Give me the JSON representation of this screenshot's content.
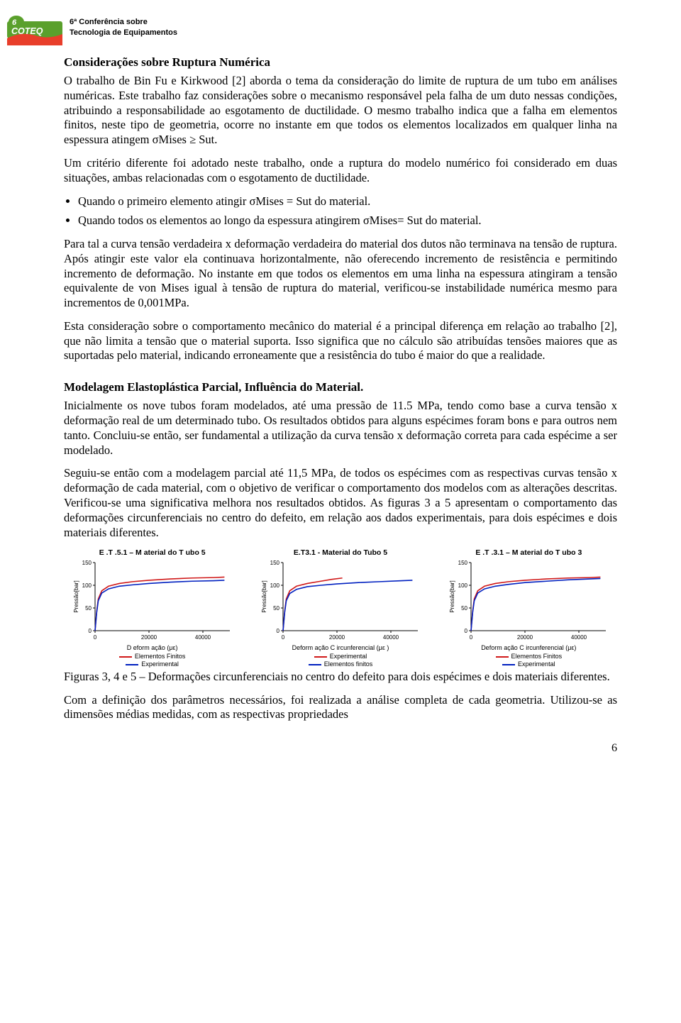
{
  "header": {
    "conf_line1": "6ª Conferência sobre",
    "conf_line2": "Tecnologia de Equipamentos",
    "logo_text": "COTEQ",
    "logo_bg": "#5aa02c",
    "logo_fg": "#ffffff",
    "logo_wave": "#e83e2a"
  },
  "section1_title": "Considerações sobre Ruptura Numérica",
  "p1": "O trabalho de Bin Fu e Kirkwood [2] aborda o tema da consideração do limite de ruptura de um tubo em análises numéricas. Este trabalho faz considerações sobre o mecanismo responsável pela falha de um duto nessas condições, atribuindo a responsabilidade ao esgotamento de ductilidade. O mesmo trabalho indica que a falha em elementos finitos, neste tipo de geometria, ocorre no instante em que todos os elementos localizados em qualquer linha na espessura atingem σMises ≥ Sut.",
  "p2": "Um critério diferente foi adotado neste trabalho, onde a ruptura do modelo numérico foi considerado em duas situações, ambas relacionadas com o esgotamento de ductilidade.",
  "bul1": "Quando o primeiro elemento atingir σMises = Sut do material.",
  "bul2": "Quando todos os elementos ao longo da espessura atingirem σMises= Sut do material.",
  "p3": "Para tal a curva tensão verdadeira x deformação verdadeira do material dos dutos não terminava na tensão de ruptura. Após atingir este valor ela continuava horizontalmente, não oferecendo incremento de resistência e permitindo incremento de deformação. No instante em que todos os elementos em uma linha na espessura atingiram a tensão equivalente de von Mises igual à tensão de ruptura do material, verificou-se instabilidade numérica mesmo para incrementos de 0,001MPa.",
  "p4": "Esta consideração sobre o comportamento mecânico do material é a principal diferença em relação ao trabalho [2], que não limita a tensão que o material suporta. Isso significa que no cálculo são atribuídas tensões maiores que as suportadas pelo material, indicando erroneamente que a resistência do tubo é maior do que a realidade.",
  "section2_title": "Modelagem Elastoplástica Parcial, Influência do Material.",
  "p5": "Inicialmente os nove tubos foram modelados, até uma pressão de 11.5 MPa,  tendo como base a curva tensão x deformação real de um determinado tubo. Os resultados obtidos para alguns espécimes foram bons e para outros nem tanto. Concluiu-se então, ser fundamental a utilização da curva tensão x deformação correta para cada espécime a ser modelado.",
  "p6": "Seguiu-se então com a modelagem parcial até 11,5 MPa, de todos os espécimes com as respectivas curvas tensão x deformação de cada material, com o objetivo de verificar o comportamento dos modelos com as alterações descritas. Verificou-se uma significativa melhora nos resultados obtidos. As figuras 3 a 5 apresentam o comportamento das deformações circunferenciais no centro do defeito, em relação aos dados experimentais, para dois espécimes e dois materiais diferentes.",
  "fig_caption": "Figuras 3, 4 e 5 – Deformações circunferenciais no centro do defeito para dois espécimes e dois materiais diferentes.",
  "p7": "Com a definição dos parâmetros necessários, foi realizada a análise completa de cada geometria. Utilizou-se as dimensões médias medidas, com as respectivas propriedades",
  "page_number": "6",
  "charts": {
    "common": {
      "ylabel": "Pressão[bar]",
      "ylim": [
        0,
        150
      ],
      "yticks": [
        0,
        50,
        100,
        150
      ],
      "xlim": [
        0,
        50000
      ],
      "xticks": [
        0,
        20000,
        40000
      ],
      "bg": "#ffffff",
      "axis_color": "#000000",
      "tick_fontsize": 8,
      "ylabel_fontsize": 8
    },
    "c1": {
      "title": "E .T .5.1 – M aterial do T ubo 5",
      "xlabel": "D eform ação (με)",
      "series": [
        {
          "name": "Elementos Finitos",
          "color": "#d01818",
          "x": [
            0,
            600,
            1200,
            2500,
            5000,
            9000,
            14000,
            20000,
            28000,
            36000,
            44000,
            48000
          ],
          "y": [
            0,
            42,
            70,
            88,
            98,
            104,
            108,
            111,
            114,
            116,
            117,
            118
          ]
        },
        {
          "name": "Experimental",
          "color": "#0020c0",
          "x": [
            0,
            600,
            1200,
            2500,
            5000,
            9000,
            14000,
            20000,
            28000,
            36000,
            44000,
            48000
          ],
          "y": [
            0,
            40,
            66,
            83,
            92,
            98,
            101,
            104,
            107,
            109,
            110,
            111
          ]
        }
      ]
    },
    "c2": {
      "title": "E.T3.1 - Material do Tubo 5",
      "xlabel": "Deform ação C ircunferencial (με )",
      "series": [
        {
          "name": "Experimental",
          "color": "#d01818",
          "x": [
            0,
            600,
            1200,
            2500,
            5000,
            9000,
            14000,
            18000,
            22000
          ],
          "y": [
            0,
            42,
            70,
            88,
            98,
            104,
            109,
            113,
            116
          ]
        },
        {
          "name": "Elementos finitos",
          "color": "#0020c0",
          "x": [
            0,
            600,
            1200,
            2500,
            5000,
            9000,
            14000,
            20000,
            28000,
            36000,
            44000,
            48000
          ],
          "y": [
            0,
            40,
            66,
            82,
            91,
            97,
            100,
            103,
            106,
            108,
            110,
            111
          ]
        }
      ]
    },
    "c3": {
      "title": "E .T .3.1 – M aterial do T ubo 3",
      "xlabel": "Deform ação C ircunferencial (με)",
      "series": [
        {
          "name": "Elementos Finitos",
          "color": "#d01818",
          "x": [
            0,
            600,
            1200,
            2500,
            5000,
            9000,
            14000,
            20000,
            28000,
            36000,
            44000,
            48000
          ],
          "y": [
            0,
            42,
            70,
            88,
            98,
            104,
            108,
            111,
            114,
            116,
            117,
            118
          ]
        },
        {
          "name": "Experimental",
          "color": "#0020c0",
          "x": [
            0,
            600,
            1200,
            2500,
            5000,
            9000,
            14000,
            20000,
            28000,
            36000,
            44000,
            48000
          ],
          "y": [
            0,
            40,
            66,
            83,
            92,
            98,
            102,
            106,
            109,
            112,
            114,
            115
          ]
        }
      ]
    }
  }
}
